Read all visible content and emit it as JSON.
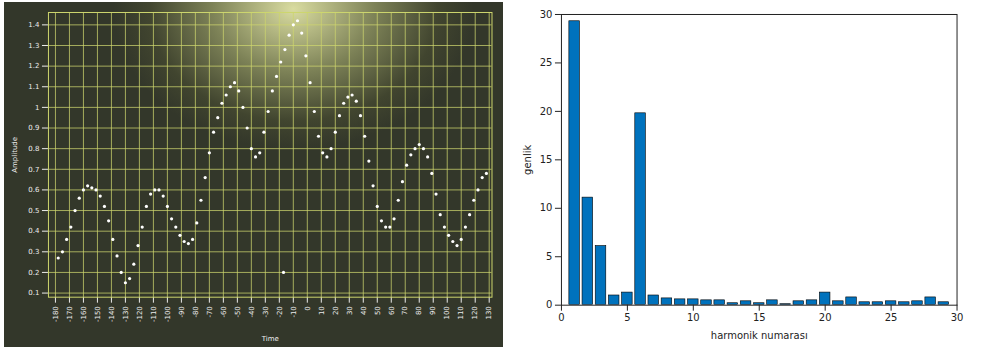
{
  "chart_data": [
    {
      "type": "scatter",
      "xlabel": "Time",
      "ylabel": "Amplitude",
      "x": [
        -178,
        -175,
        -172,
        -169,
        -166,
        -163,
        -160,
        -157,
        -154,
        -151,
        -148,
        -145,
        -142,
        -139,
        -136,
        -133,
        -130,
        -127,
        -124,
        -121,
        -118,
        -115,
        -112,
        -109,
        -106,
        -103,
        -100,
        -97,
        -94,
        -91,
        -88,
        -85,
        -82,
        -79,
        -76,
        -73,
        -70,
        -67,
        -64,
        -61,
        -58,
        -55,
        -52,
        -49,
        -46,
        -43,
        -40,
        -37,
        -34,
        -31,
        -28,
        -25,
        -22,
        -19,
        -16,
        -13,
        -10,
        -7,
        -4,
        -1,
        2,
        5,
        8,
        11,
        14,
        17,
        20,
        23,
        26,
        29,
        32,
        35,
        38,
        41,
        44,
        47,
        50,
        53,
        56,
        59,
        62,
        65,
        68,
        71,
        74,
        77,
        80,
        83,
        86,
        89,
        92,
        95,
        98,
        101,
        104,
        107,
        110,
        113,
        116,
        119,
        122,
        125,
        128,
        -17
      ],
      "values": [
        0.27,
        0.3,
        0.36,
        0.42,
        0.5,
        0.56,
        0.6,
        0.62,
        0.61,
        0.6,
        0.57,
        0.52,
        0.45,
        0.36,
        0.28,
        0.2,
        0.15,
        0.17,
        0.24,
        0.33,
        0.42,
        0.52,
        0.58,
        0.6,
        0.6,
        0.57,
        0.52,
        0.46,
        0.42,
        0.38,
        0.35,
        0.34,
        0.36,
        0.44,
        0.55,
        0.66,
        0.78,
        0.88,
        0.95,
        1.02,
        1.06,
        1.1,
        1.12,
        1.08,
        1.0,
        0.9,
        0.8,
        0.76,
        0.78,
        0.88,
        0.98,
        1.08,
        1.15,
        1.22,
        1.28,
        1.35,
        1.4,
        1.42,
        1.36,
        1.25,
        1.12,
        0.98,
        0.86,
        0.78,
        0.76,
        0.8,
        0.88,
        0.96,
        1.02,
        1.05,
        1.06,
        1.03,
        0.96,
        0.86,
        0.74,
        0.62,
        0.52,
        0.45,
        0.42,
        0.42,
        0.46,
        0.55,
        0.64,
        0.72,
        0.77,
        0.8,
        0.82,
        0.8,
        0.76,
        0.68,
        0.58,
        0.48,
        0.42,
        0.38,
        0.35,
        0.33,
        0.36,
        0.42,
        0.48,
        0.55,
        0.6,
        0.66,
        0.68,
        0.2
      ],
      "color": "#ffffff",
      "marker": "dot",
      "xlim": [
        -185,
        132
      ],
      "xticks": [
        -180,
        -170,
        -160,
        -150,
        -140,
        -130,
        -120,
        -110,
        -100,
        -90,
        -80,
        -70,
        -60,
        -50,
        -40,
        -30,
        -20,
        -10,
        0,
        10,
        20,
        30,
        40,
        50,
        60,
        70,
        80,
        90,
        100,
        110,
        120,
        130
      ],
      "ylim": [
        0.08,
        1.46
      ],
      "yticks": [
        0.1,
        0.2,
        0.3,
        0.4,
        0.5,
        0.6,
        0.7,
        0.8,
        0.9,
        1,
        1.1,
        1.2,
        1.3,
        1.4
      ],
      "grid": true
    },
    {
      "type": "bar",
      "xlabel": "harmonik numarası",
      "ylabel": "genlik",
      "x": [
        1,
        2,
        3,
        4,
        5,
        6,
        7,
        8,
        9,
        10,
        11,
        12,
        13,
        14,
        15,
        16,
        17,
        18,
        19,
        20,
        21,
        22,
        23,
        24,
        25,
        26,
        27,
        28,
        29
      ],
      "values": [
        29.3,
        11.1,
        6.1,
        1.0,
        1.3,
        19.8,
        1.0,
        0.7,
        0.6,
        0.6,
        0.5,
        0.5,
        0.2,
        0.4,
        0.2,
        0.5,
        0.1,
        0.4,
        0.5,
        1.3,
        0.4,
        0.8,
        0.3,
        0.3,
        0.4,
        0.3,
        0.4,
        0.8,
        0.3
      ],
      "color": "#0072bd",
      "xlim": [
        0,
        30
      ],
      "xticks": [
        0,
        5,
        10,
        15,
        20,
        25,
        30
      ],
      "ylim": [
        0,
        30
      ],
      "yticks": [
        0,
        5,
        10,
        15,
        20,
        25,
        30
      ],
      "grid": false
    }
  ]
}
